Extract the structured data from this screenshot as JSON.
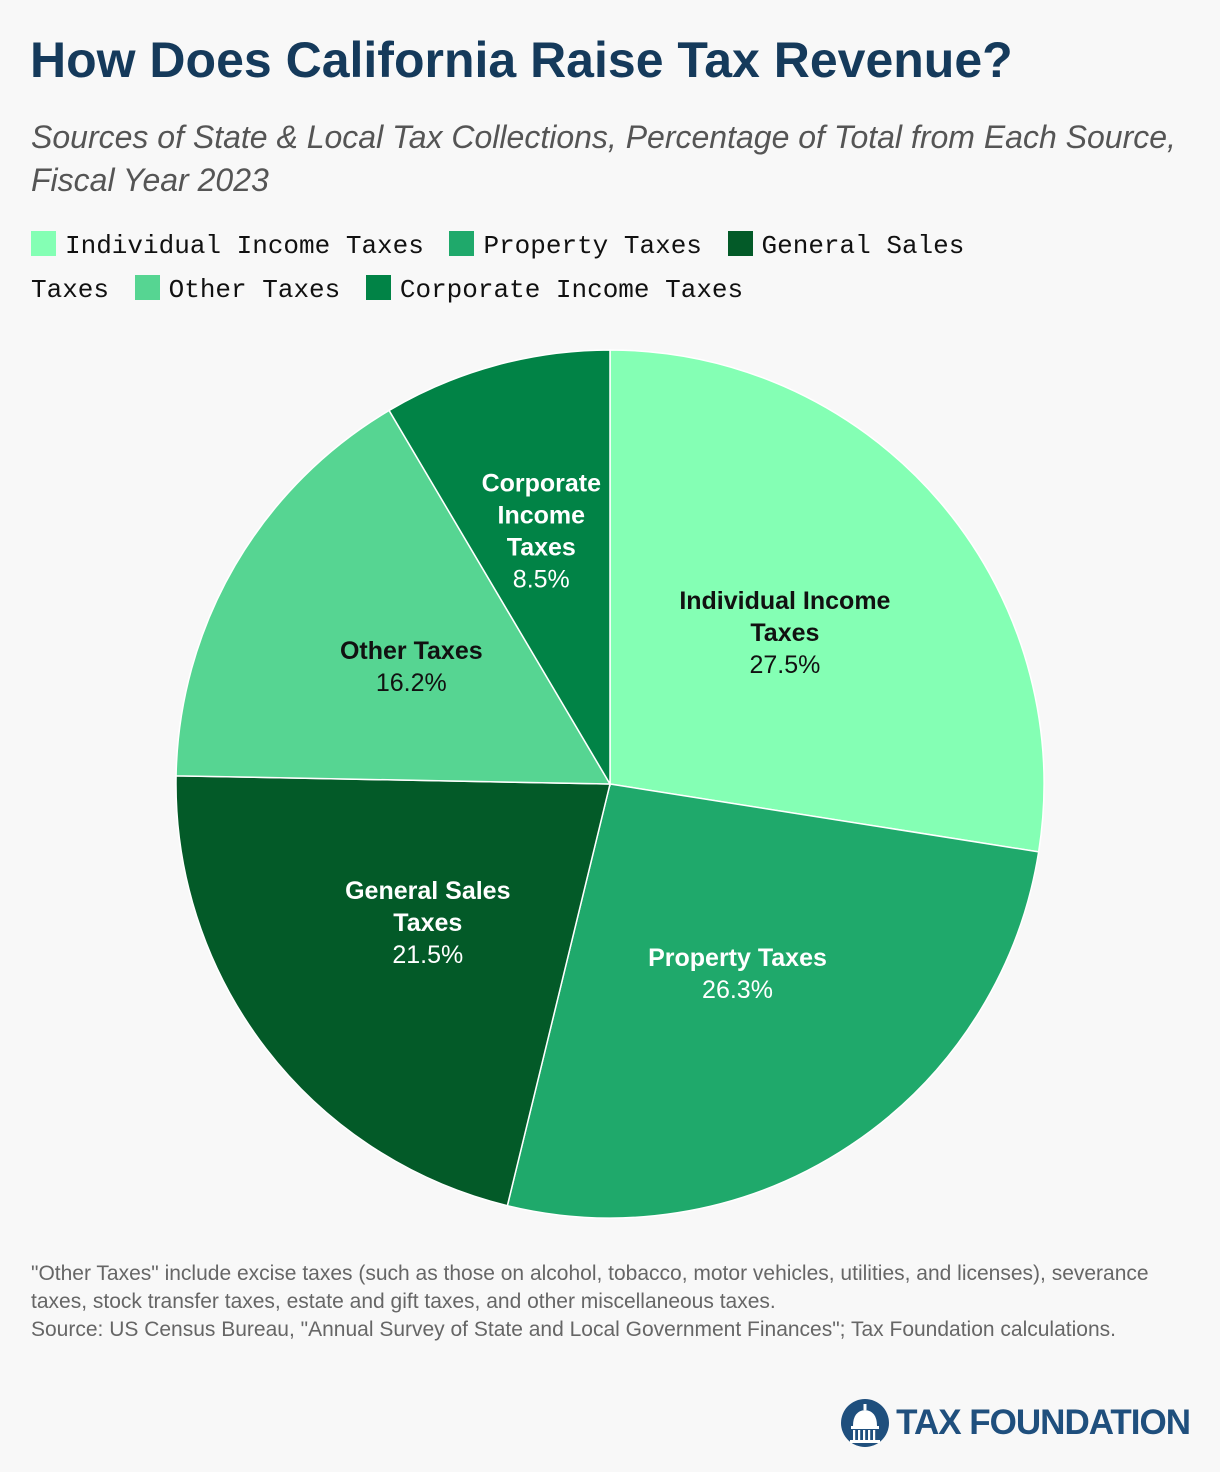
{
  "title": "How Does California Raise Tax Revenue?",
  "subtitle": "Sources of State & Local Tax Collections, Percentage of Total from Each Source, Fiscal Year 2023",
  "chart_data": {
    "type": "pie",
    "title": "How Does California Raise Tax Revenue?",
    "subtitle": "Sources of State & Local Tax Collections, Percentage of Total from Each Source, Fiscal Year 2023",
    "legend_position": "top",
    "start": "12 o'clock",
    "direction": "clockwise",
    "slices": [
      {
        "label": "Individual Income Taxes",
        "label_lines": [
          "Individual Income",
          "Taxes"
        ],
        "value": 27.5,
        "value_label": "27.5%",
        "color": "#84ffb4",
        "text_color": "#111111"
      },
      {
        "label": "Property Taxes",
        "label_lines": [
          "Property Taxes"
        ],
        "value": 26.3,
        "value_label": "26.3%",
        "color": "#1fa96b",
        "text_color": "#ffffff"
      },
      {
        "label": "General Sales Taxes",
        "label_lines": [
          "General Sales",
          "Taxes"
        ],
        "value": 21.5,
        "value_label": "21.5%",
        "color": "#035a28",
        "text_color": "#ffffff"
      },
      {
        "label": "Other Taxes",
        "label_lines": [
          "Other Taxes"
        ],
        "value": 16.2,
        "value_label": "16.2%",
        "color": "#56d592",
        "text_color": "#111111"
      },
      {
        "label": "Corporate Income Taxes",
        "label_lines": [
          "Corporate",
          "Income",
          "Taxes"
        ],
        "value": 8.5,
        "value_label": "8.5%",
        "color": "#018346",
        "text_color": "#ffffff"
      }
    ]
  },
  "notes": {
    "footnote": "\"Other Taxes\" include excise taxes (such as those on alcohol, tobacco, motor vehicles, utilities, and licenses), severance taxes, stock transfer taxes, estate and gift taxes, and other miscellaneous taxes.",
    "source": "Source: US Census Bureau, \"Annual Survey of State and Local Government Finances\"; Tax Foundation calculations."
  },
  "logo": {
    "text": "TAX FOUNDATION",
    "icon": "capitol-dome-icon",
    "color": "#1f4f7d"
  }
}
